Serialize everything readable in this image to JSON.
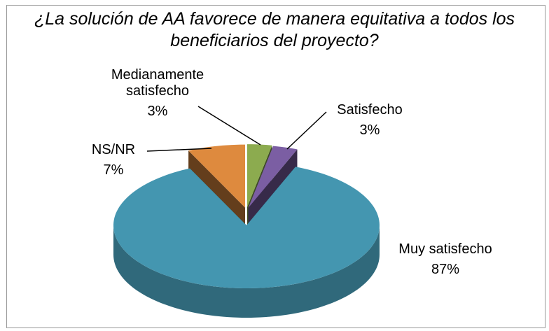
{
  "chart_data": {
    "type": "pie3d",
    "title": "¿La solución de AA favorece de manera equitativa a todos los beneficiarios del proyecto?",
    "categories": [
      "Medianamente satisfecho",
      "Satisfecho",
      "Muy satisfecho",
      "NS/NR"
    ],
    "values": [
      3,
      3,
      87,
      7
    ],
    "value_labels": [
      "3%",
      "3%",
      "87%",
      "7%"
    ],
    "colors": [
      "#8cab4f",
      "#7b5ea3",
      "#4496b0",
      "#de8a3e"
    ]
  }
}
